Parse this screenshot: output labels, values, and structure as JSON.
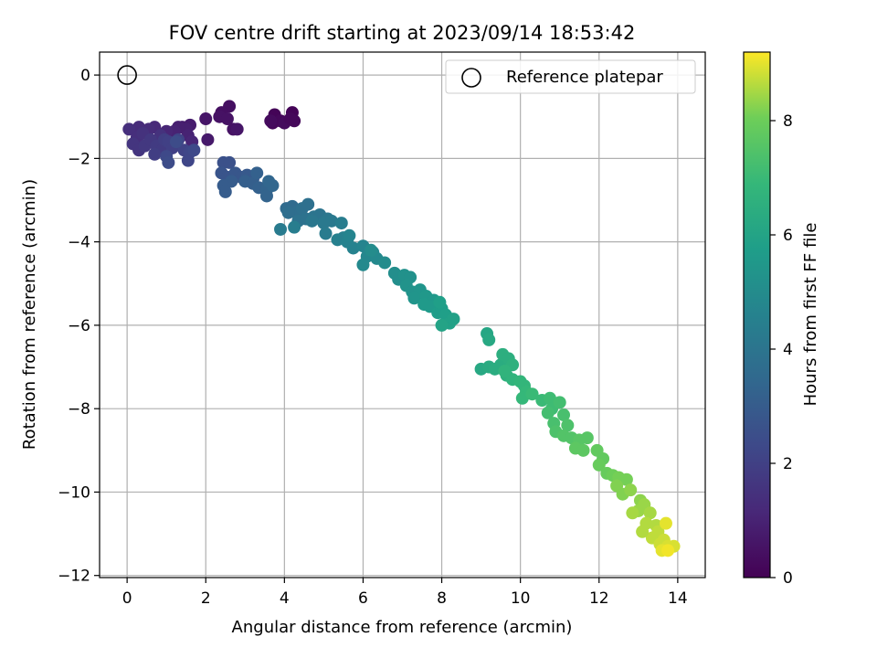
{
  "chart_data": {
    "type": "scatter",
    "title": "FOV centre drift starting at 2023/09/14 18:53:42",
    "xlabel": "Angular distance from reference (arcmin)",
    "ylabel": "Rotation from reference (arcmin)",
    "xlim": [
      -0.7,
      14.7
    ],
    "ylim": [
      -12.05,
      0.55
    ],
    "xticks": [
      0,
      2,
      4,
      6,
      8,
      10,
      12,
      14
    ],
    "yticks": [
      0,
      -2,
      -4,
      -6,
      -8,
      -10,
      -12
    ],
    "grid": true,
    "legend": {
      "placement": "top-right",
      "entries": [
        "Reference platepar"
      ]
    },
    "reference_point": {
      "x": 0,
      "y": 0,
      "label": "Reference platepar"
    },
    "colorbar": {
      "label": "Hours from first FF file",
      "range": [
        0,
        9.2
      ],
      "ticks": [
        0,
        2,
        4,
        6,
        8
      ],
      "colormap": "viridis"
    },
    "series": [
      {
        "points": [
          [
            3.75,
            -0.95,
            0.1
          ],
          [
            4.2,
            -0.9,
            0.1
          ],
          [
            3.7,
            -1.15,
            0.2
          ],
          [
            3.9,
            -1.1,
            0.2
          ],
          [
            4.25,
            -1.1,
            0.2
          ],
          [
            4.0,
            -1.15,
            0.3
          ],
          [
            3.65,
            -1.1,
            0.3
          ],
          [
            4.15,
            -1.05,
            0.2
          ],
          [
            2.6,
            -0.75,
            0.4
          ],
          [
            2.4,
            -0.9,
            0.4
          ],
          [
            2.35,
            -1.0,
            0.5
          ],
          [
            2.55,
            -1.05,
            0.5
          ],
          [
            2.7,
            -1.3,
            0.5
          ],
          [
            2.8,
            -1.3,
            0.6
          ],
          [
            2.0,
            -1.05,
            0.6
          ],
          [
            2.05,
            -1.55,
            0.7
          ],
          [
            1.6,
            -1.2,
            0.8
          ],
          [
            1.4,
            -1.25,
            0.8
          ],
          [
            1.5,
            -1.3,
            0.9
          ],
          [
            1.3,
            -1.25,
            0.9
          ],
          [
            1.55,
            -1.45,
            1.0
          ],
          [
            1.65,
            -1.6,
            1.1
          ],
          [
            1.2,
            -1.35,
            1.0
          ],
          [
            1.0,
            -1.35,
            1.1
          ],
          [
            0.7,
            -1.25,
            1.2
          ],
          [
            0.55,
            -1.3,
            1.3
          ],
          [
            0.3,
            -1.25,
            1.3
          ],
          [
            0.05,
            -1.3,
            1.4
          ],
          [
            0.25,
            -1.5,
            1.4
          ],
          [
            0.4,
            -1.4,
            1.5
          ],
          [
            0.85,
            -1.45,
            1.5
          ],
          [
            0.15,
            -1.65,
            1.6
          ],
          [
            0.3,
            -1.8,
            1.6
          ],
          [
            0.45,
            -1.7,
            1.7
          ],
          [
            0.6,
            -1.55,
            1.7
          ],
          [
            0.75,
            -1.7,
            1.8
          ],
          [
            0.9,
            -1.8,
            1.8
          ],
          [
            0.7,
            -1.9,
            1.9
          ],
          [
            0.95,
            -1.55,
            1.9
          ],
          [
            1.05,
            -1.6,
            2.0
          ],
          [
            1.15,
            -1.75,
            2.0
          ],
          [
            1.3,
            -1.55,
            2.1
          ],
          [
            1.45,
            -1.8,
            2.1
          ],
          [
            1.55,
            -2.05,
            2.2
          ],
          [
            1.6,
            -1.85,
            2.2
          ],
          [
            1.7,
            -1.8,
            2.3
          ],
          [
            1.0,
            -1.95,
            2.3
          ],
          [
            1.05,
            -2.1,
            2.4
          ],
          [
            1.25,
            -1.6,
            2.4
          ],
          [
            2.45,
            -2.1,
            2.6
          ],
          [
            2.6,
            -2.1,
            2.6
          ],
          [
            2.4,
            -2.35,
            2.7
          ],
          [
            2.55,
            -2.45,
            2.7
          ],
          [
            2.75,
            -2.35,
            2.8
          ],
          [
            2.9,
            -2.45,
            2.8
          ],
          [
            3.05,
            -2.4,
            2.9
          ],
          [
            3.2,
            -2.5,
            2.9
          ],
          [
            2.65,
            -2.55,
            3.0
          ],
          [
            2.45,
            -2.65,
            3.0
          ],
          [
            2.5,
            -2.8,
            3.0
          ],
          [
            3.0,
            -2.55,
            3.1
          ],
          [
            3.2,
            -2.6,
            3.1
          ],
          [
            3.3,
            -2.35,
            3.2
          ],
          [
            3.35,
            -2.7,
            3.2
          ],
          [
            3.55,
            -2.75,
            3.3
          ],
          [
            3.55,
            -2.9,
            3.3
          ],
          [
            3.7,
            -2.65,
            3.4
          ],
          [
            3.6,
            -2.55,
            3.4
          ],
          [
            4.05,
            -3.2,
            3.6
          ],
          [
            4.2,
            -3.15,
            3.6
          ],
          [
            4.3,
            -3.3,
            3.7
          ],
          [
            4.1,
            -3.3,
            3.7
          ],
          [
            4.45,
            -3.2,
            3.8
          ],
          [
            4.6,
            -3.1,
            3.8
          ],
          [
            4.35,
            -3.5,
            3.9
          ],
          [
            4.55,
            -3.45,
            3.9
          ],
          [
            4.75,
            -3.4,
            4.0
          ],
          [
            4.9,
            -3.35,
            4.0
          ],
          [
            4.7,
            -3.5,
            4.1
          ],
          [
            5.1,
            -3.45,
            4.1
          ],
          [
            5.0,
            -3.55,
            4.2
          ],
          [
            5.2,
            -3.5,
            4.2
          ],
          [
            5.05,
            -3.8,
            4.3
          ],
          [
            3.9,
            -3.7,
            4.3
          ],
          [
            4.25,
            -3.65,
            4.4
          ],
          [
            5.45,
            -3.55,
            4.4
          ],
          [
            5.35,
            -3.95,
            4.5
          ],
          [
            5.5,
            -3.9,
            4.5
          ],
          [
            5.6,
            -4.0,
            4.6
          ],
          [
            5.75,
            -4.15,
            4.6
          ],
          [
            5.65,
            -3.85,
            4.7
          ],
          [
            6.0,
            -4.1,
            4.7
          ],
          [
            6.25,
            -4.25,
            4.8
          ],
          [
            6.1,
            -4.35,
            4.8
          ],
          [
            6.0,
            -4.55,
            4.9
          ],
          [
            6.35,
            -4.4,
            4.9
          ],
          [
            6.55,
            -4.5,
            5.0
          ],
          [
            6.2,
            -4.2,
            5.0
          ],
          [
            6.8,
            -4.75,
            5.1
          ],
          [
            6.9,
            -4.9,
            5.1
          ],
          [
            7.05,
            -4.8,
            5.2
          ],
          [
            7.2,
            -4.85,
            5.2
          ],
          [
            7.1,
            -5.05,
            5.3
          ],
          [
            7.25,
            -5.2,
            5.3
          ],
          [
            7.45,
            -5.15,
            5.4
          ],
          [
            7.3,
            -5.35,
            5.4
          ],
          [
            7.6,
            -5.3,
            5.5
          ],
          [
            7.8,
            -5.4,
            5.5
          ],
          [
            7.55,
            -5.5,
            5.6
          ],
          [
            7.7,
            -5.55,
            5.6
          ],
          [
            7.9,
            -5.7,
            5.7
          ],
          [
            8.0,
            -5.6,
            5.7
          ],
          [
            7.95,
            -5.45,
            5.8
          ],
          [
            8.1,
            -5.75,
            5.8
          ],
          [
            8.2,
            -5.95,
            5.9
          ],
          [
            8.3,
            -5.85,
            5.9
          ],
          [
            8.0,
            -6.0,
            6.0
          ],
          [
            9.15,
            -6.2,
            6.1
          ],
          [
            9.2,
            -6.35,
            6.2
          ],
          [
            9.0,
            -7.05,
            6.2
          ],
          [
            9.2,
            -7.0,
            6.3
          ],
          [
            9.35,
            -7.05,
            6.4
          ],
          [
            9.5,
            -6.95,
            6.4
          ],
          [
            9.55,
            -6.7,
            6.5
          ],
          [
            9.7,
            -6.8,
            6.5
          ],
          [
            9.8,
            -6.95,
            6.6
          ],
          [
            9.65,
            -7.2,
            6.6
          ],
          [
            9.8,
            -7.3,
            6.7
          ],
          [
            9.6,
            -7.1,
            6.7
          ],
          [
            10.0,
            -7.35,
            6.8
          ],
          [
            10.1,
            -7.45,
            6.8
          ],
          [
            10.15,
            -7.6,
            6.9
          ],
          [
            10.05,
            -7.75,
            6.9
          ],
          [
            10.3,
            -7.65,
            7.0
          ],
          [
            10.55,
            -7.8,
            7.0
          ],
          [
            10.75,
            -7.75,
            7.1
          ],
          [
            10.8,
            -8.0,
            7.1
          ],
          [
            10.7,
            -8.1,
            7.2
          ],
          [
            11.0,
            -7.85,
            7.2
          ],
          [
            11.1,
            -8.15,
            7.3
          ],
          [
            10.85,
            -8.35,
            7.3
          ],
          [
            10.9,
            -8.55,
            7.4
          ],
          [
            11.2,
            -8.4,
            7.4
          ],
          [
            11.1,
            -8.65,
            7.5
          ],
          [
            11.3,
            -8.7,
            7.5
          ],
          [
            11.5,
            -8.75,
            7.6
          ],
          [
            11.7,
            -8.7,
            7.6
          ],
          [
            11.4,
            -8.95,
            7.7
          ],
          [
            11.6,
            -9.0,
            7.7
          ],
          [
            11.95,
            -9.0,
            7.8
          ],
          [
            12.1,
            -9.2,
            7.8
          ],
          [
            12.0,
            -9.35,
            7.9
          ],
          [
            12.2,
            -9.55,
            7.9
          ],
          [
            12.35,
            -9.6,
            8.0
          ],
          [
            12.5,
            -9.65,
            8.1
          ],
          [
            12.7,
            -9.7,
            8.1
          ],
          [
            12.45,
            -9.85,
            8.2
          ],
          [
            12.6,
            -10.05,
            8.2
          ],
          [
            12.8,
            -9.95,
            8.3
          ],
          [
            13.05,
            -10.2,
            8.3
          ],
          [
            13.15,
            -10.3,
            8.4
          ],
          [
            13.0,
            -10.45,
            8.4
          ],
          [
            12.85,
            -10.5,
            8.5
          ],
          [
            13.3,
            -10.5,
            8.5
          ],
          [
            13.2,
            -10.75,
            8.6
          ],
          [
            13.45,
            -10.8,
            8.6
          ],
          [
            13.5,
            -10.95,
            8.7
          ],
          [
            13.35,
            -11.1,
            8.7
          ],
          [
            13.65,
            -11.15,
            8.8
          ],
          [
            13.55,
            -11.25,
            8.8
          ],
          [
            13.75,
            -11.3,
            8.9
          ],
          [
            13.9,
            -11.3,
            8.9
          ],
          [
            13.6,
            -11.4,
            9.0
          ],
          [
            13.75,
            -11.4,
            9.1
          ],
          [
            13.7,
            -10.75,
            9.0
          ],
          [
            13.1,
            -10.95,
            8.6
          ]
        ]
      }
    ]
  }
}
